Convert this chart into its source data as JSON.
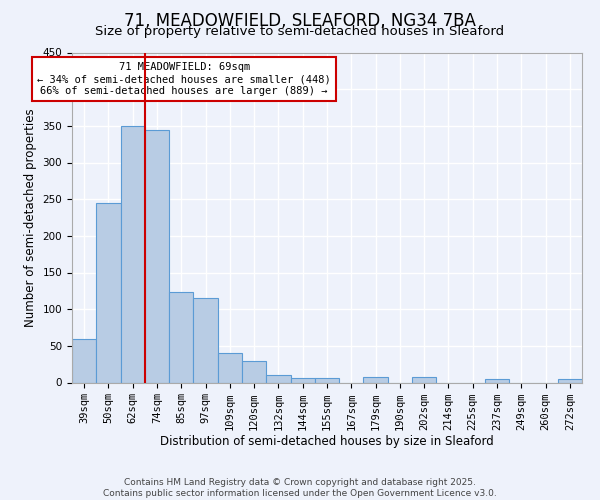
{
  "title": "71, MEADOWFIELD, SLEAFORD, NG34 7BA",
  "subtitle": "Size of property relative to semi-detached houses in Sleaford",
  "xlabel": "Distribution of semi-detached houses by size in Sleaford",
  "ylabel": "Number of semi-detached properties",
  "bar_labels": [
    "39sqm",
    "50sqm",
    "62sqm",
    "74sqm",
    "85sqm",
    "97sqm",
    "109sqm",
    "120sqm",
    "132sqm",
    "144sqm",
    "155sqm",
    "167sqm",
    "179sqm",
    "190sqm",
    "202sqm",
    "214sqm",
    "225sqm",
    "237sqm",
    "249sqm",
    "260sqm",
    "272sqm"
  ],
  "bar_values": [
    60,
    245,
    350,
    345,
    123,
    115,
    40,
    30,
    10,
    6,
    6,
    0,
    7,
    0,
    8,
    0,
    0,
    5,
    0,
    0,
    5
  ],
  "bar_color": "#b8cce4",
  "bar_edge_color": "#5b9bd5",
  "vline_color": "#cc0000",
  "annotation_title": "71 MEADOWFIELD: 69sqm",
  "annotation_line1": "← 34% of semi-detached houses are smaller (448)",
  "annotation_line2": "66% of semi-detached houses are larger (889) →",
  "annotation_box_color": "#ffffff",
  "annotation_box_edge": "#cc0000",
  "ylim": [
    0,
    450
  ],
  "yticks": [
    0,
    50,
    100,
    150,
    200,
    250,
    300,
    350,
    400,
    450
  ],
  "footer1": "Contains HM Land Registry data © Crown copyright and database right 2025.",
  "footer2": "Contains public sector information licensed under the Open Government Licence v3.0.",
  "bg_color": "#eef2fb",
  "grid_color": "#ffffff",
  "title_fontsize": 12,
  "subtitle_fontsize": 9.5,
  "axis_label_fontsize": 8.5,
  "tick_fontsize": 7.5,
  "footer_fontsize": 6.5
}
